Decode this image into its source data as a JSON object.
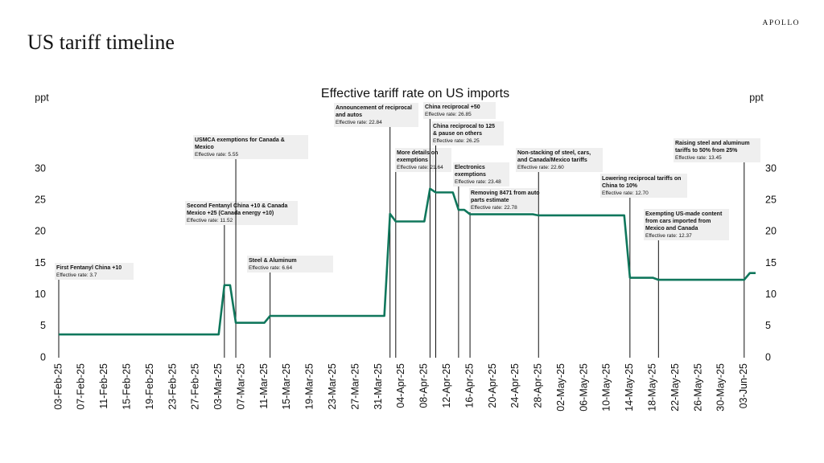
{
  "header": {
    "title": "US tariff timeline",
    "brand": "APOLLO"
  },
  "chart_data": {
    "type": "line",
    "title": "Effective tariff rate on US imports",
    "y_label": "ppt",
    "y2_label": "ppt",
    "xlim": [
      "03-Feb-25",
      "05-Jun-25"
    ],
    "xticks": [
      "03-Feb-25",
      "07-Feb-25",
      "11-Feb-25",
      "15-Feb-25",
      "19-Feb-25",
      "23-Feb-25",
      "27-Feb-25",
      "03-Mar-25",
      "07-Mar-25",
      "11-Mar-25",
      "15-Mar-25",
      "19-Mar-25",
      "23-Mar-25",
      "27-Mar-25",
      "31-Mar-25",
      "04-Apr-25",
      "08-Apr-25",
      "12-Apr-25",
      "16-Apr-25",
      "20-Apr-25",
      "24-Apr-25",
      "28-Apr-25",
      "02-May-25",
      "06-May-25",
      "10-May-25",
      "14-May-25",
      "18-May-25",
      "22-May-25",
      "26-May-25",
      "30-May-25",
      "03-Jun-25"
    ],
    "ylim": [
      0,
      30
    ],
    "yticks": [
      0,
      5,
      10,
      15,
      20,
      25,
      30
    ],
    "y2lim": [
      0,
      30
    ],
    "y2ticks": [
      0,
      5,
      10,
      15,
      20,
      25,
      30
    ],
    "grid": false,
    "series": [
      {
        "name": "Effective tariff rate",
        "color": "#10775c",
        "x": [
          "03-Feb-25",
          "03-Mar-25",
          "04-Mar-25",
          "05-Mar-25",
          "06-Mar-25",
          "11-Mar-25",
          "12-Mar-25",
          "01-Apr-25",
          "02-Apr-25",
          "03-Apr-25",
          "08-Apr-25",
          "09-Apr-25",
          "10-Apr-25",
          "13-Apr-25",
          "14-Apr-25",
          "15-Apr-25",
          "16-Apr-25",
          "27-Apr-25",
          "28-Apr-25",
          "13-May-25",
          "14-May-25",
          "18-May-25",
          "19-May-25",
          "03-Jun-25",
          "04-Jun-25",
          "05-Jun-25"
        ],
        "values": [
          3.7,
          3.7,
          11.52,
          11.52,
          5.55,
          5.55,
          6.64,
          6.64,
          22.84,
          21.64,
          21.64,
          26.85,
          26.25,
          26.25,
          23.48,
          23.48,
          22.78,
          22.78,
          22.6,
          22.6,
          12.7,
          12.7,
          12.37,
          12.37,
          13.45,
          13.45
        ]
      }
    ],
    "annotations": [
      {
        "lines": [
          "First Fentanyl China +10"
        ],
        "rate": "Effective rate: 3.7",
        "x": "03-Feb-25"
      },
      {
        "lines": [
          "Second Fentanyl China +10 & Canada",
          "Mexico +25 (Canada energy +10)"
        ],
        "rate": "Effective rate: 11.52",
        "x": "04-Mar-25"
      },
      {
        "lines": [
          "USMCA exemptions for Canada &",
          "Mexico"
        ],
        "rate": "Effective rate: 5.55",
        "x": "06-Mar-25"
      },
      {
        "lines": [
          "Steel & Aluminum"
        ],
        "rate": "Effective rate: 6.64",
        "x": "12-Mar-25"
      },
      {
        "lines": [
          "Announcement of reciprocal",
          "and autos"
        ],
        "rate": "Effective rate: 22.84",
        "x": "02-Apr-25"
      },
      {
        "lines": [
          "More details on",
          "exemptions"
        ],
        "rate": "Effective rate: 21.64",
        "x": "03-Apr-25"
      },
      {
        "lines": [
          "China reciprocal +50"
        ],
        "rate": "Effective rate: 26.85",
        "x": "09-Apr-25"
      },
      {
        "lines": [
          "China reciprocal to 125",
          "& pause on others"
        ],
        "rate": "Effective rate: 26.25",
        "x": "10-Apr-25"
      },
      {
        "lines": [
          "Electronics",
          "exemptions"
        ],
        "rate": "Effective rate: 23.48",
        "x": "14-Apr-25"
      },
      {
        "lines": [
          "Removing 8471 from auto",
          "parts estimate"
        ],
        "rate": "Effective rate: 22.78",
        "x": "16-Apr-25"
      },
      {
        "lines": [
          "Non-stacking of steel, cars,",
          "and Canada/Mexico tariffs"
        ],
        "rate": "Effective rate: 22.60",
        "x": "28-Apr-25"
      },
      {
        "lines": [
          "Lowering reciprocal tariffs on",
          "China to 10%"
        ],
        "rate": "Effective rate: 12.70",
        "x": "14-May-25"
      },
      {
        "lines": [
          "Exempting US-made content",
          "from cars imported from",
          "Mexico and Canada"
        ],
        "rate": "Effective rate: 12.37",
        "x": "19-May-25"
      },
      {
        "lines": [
          "Raising steel and aluminum",
          "tariffs to 50% from 25%"
        ],
        "rate": "Effective rate: 13.45",
        "x": "03-Jun-25"
      }
    ]
  }
}
